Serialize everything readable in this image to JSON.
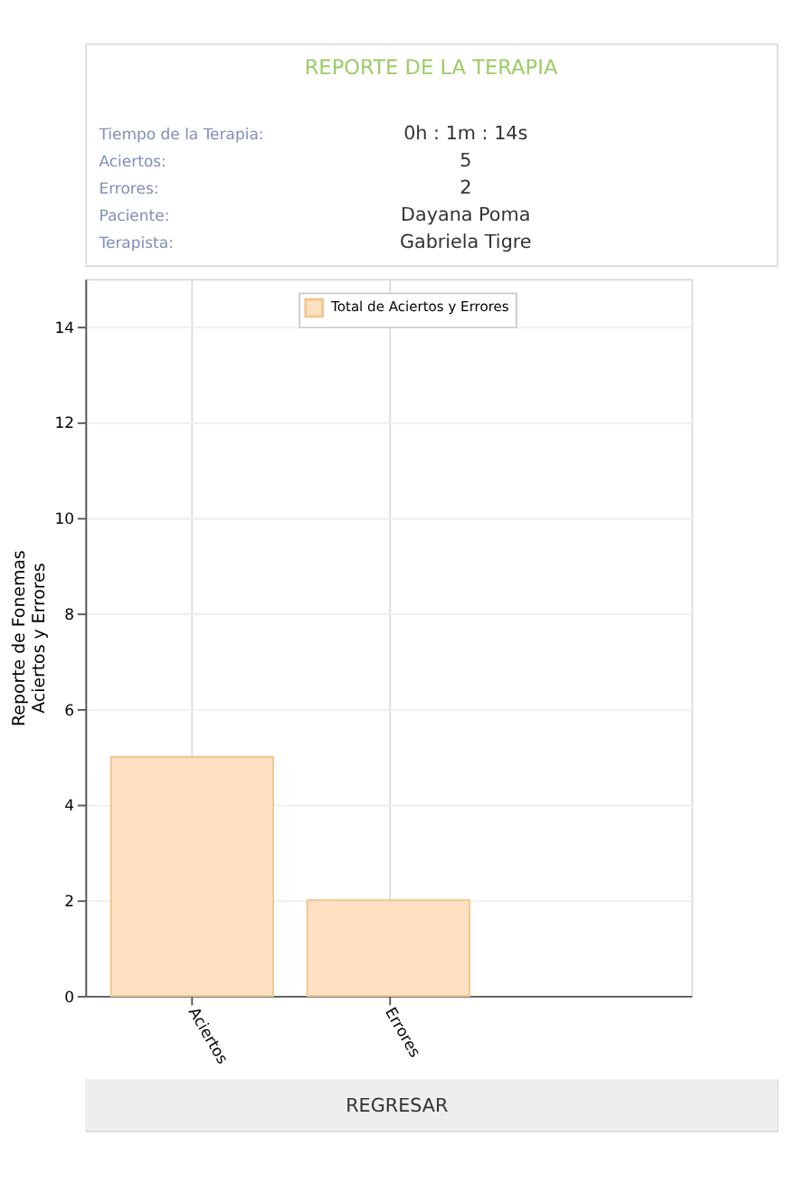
{
  "chart_data": {
    "type": "bar",
    "title": "REPORTE DE LA TERAPIA",
    "annotations": [
      "Tiempo de la Terapia:",
      "0h : 1m : 14s",
      "Aciertos:",
      "5",
      "Errores:",
      "2",
      "Paciente:",
      "Dayana Poma",
      "Terapista:",
      "Gabriela Tigre",
      "REGRESAR"
    ],
    "categories": [
      "Aciertos",
      "Errores"
    ],
    "series": [
      {
        "name": "Total de Aciertos y Errores",
        "color": "#fde1c2",
        "values": [
          5,
          2
        ]
      }
    ],
    "ylabel": "Reporte de Fonemas\nAciertos y Errores",
    "ylim": [
      0,
      15
    ],
    "yticks": [
      0,
      2,
      4,
      6,
      8,
      10,
      12,
      14
    ],
    "grid": true,
    "legend": "top"
  }
}
